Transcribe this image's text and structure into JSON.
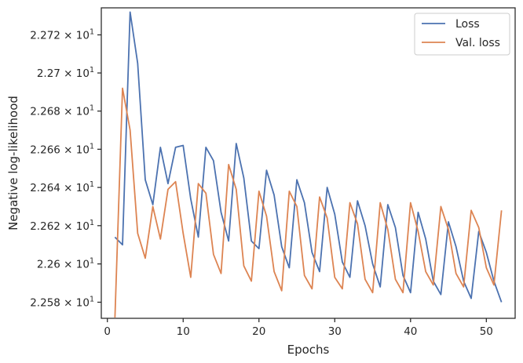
{
  "chart_data": {
    "type": "line",
    "xlabel": "Epochs",
    "ylabel": "Negative log-likelihood",
    "xlim": [
      -0.8,
      53.8
    ],
    "ylim": [
      22.5716,
      22.7342
    ],
    "y_scale": "log",
    "x_ticks": [
      0,
      10,
      20,
      30,
      40,
      50
    ],
    "y_ticks": [
      {
        "value": 22.58,
        "mantissa": "2.258",
        "base": "10",
        "exp": "1"
      },
      {
        "value": 22.6,
        "mantissa": "2.26",
        "base": "10",
        "exp": "1"
      },
      {
        "value": 22.62,
        "mantissa": "2.262",
        "base": "10",
        "exp": "1"
      },
      {
        "value": 22.64,
        "mantissa": "2.264",
        "base": "10",
        "exp": "1"
      },
      {
        "value": 22.66,
        "mantissa": "2.266",
        "base": "10",
        "exp": "1"
      },
      {
        "value": 22.68,
        "mantissa": "2.268",
        "base": "10",
        "exp": "1"
      },
      {
        "value": 22.7,
        "mantissa": "2.27",
        "base": "10",
        "exp": "1"
      },
      {
        "value": 22.72,
        "mantissa": "2.272",
        "base": "10",
        "exp": "1"
      }
    ],
    "grid": false,
    "legend_position": "top-right",
    "x": [
      1,
      2,
      3,
      4,
      5,
      6,
      7,
      8,
      9,
      10,
      11,
      12,
      13,
      14,
      15,
      16,
      17,
      18,
      19,
      20,
      21,
      22,
      23,
      24,
      25,
      26,
      27,
      28,
      29,
      30,
      31,
      32,
      33,
      34,
      35,
      36,
      37,
      38,
      39,
      40,
      41,
      42,
      43,
      44,
      45,
      46,
      47,
      48,
      49,
      50,
      51,
      52
    ],
    "series": [
      {
        "name": "Loss",
        "color": "#4c72b0",
        "values": [
          22.614,
          22.61,
          22.732,
          22.705,
          22.644,
          22.631,
          22.661,
          22.642,
          22.661,
          22.662,
          22.634,
          22.614,
          22.661,
          22.654,
          22.627,
          22.612,
          22.663,
          22.645,
          22.612,
          22.608,
          22.649,
          22.636,
          22.609,
          22.598,
          22.644,
          22.632,
          22.606,
          22.596,
          22.64,
          22.626,
          22.601,
          22.593,
          22.633,
          22.62,
          22.6,
          22.588,
          22.631,
          22.619,
          22.594,
          22.585,
          22.627,
          22.613,
          22.591,
          22.584,
          22.622,
          22.609,
          22.591,
          22.582,
          22.617,
          22.606,
          22.591,
          22.58
        ]
      },
      {
        "name": "Val. loss",
        "color": "#dd8452",
        "values": [
          22.572,
          22.692,
          22.67,
          22.616,
          22.603,
          22.63,
          22.613,
          22.639,
          22.643,
          22.616,
          22.593,
          22.642,
          22.637,
          22.605,
          22.595,
          22.652,
          22.639,
          22.599,
          22.591,
          22.638,
          22.625,
          22.596,
          22.586,
          22.638,
          22.63,
          22.594,
          22.587,
          22.635,
          22.624,
          22.593,
          22.587,
          22.632,
          22.621,
          22.592,
          22.585,
          22.632,
          22.618,
          22.592,
          22.585,
          22.632,
          22.617,
          22.596,
          22.589,
          22.63,
          22.618,
          22.595,
          22.588,
          22.628,
          22.619,
          22.598,
          22.589,
          22.628
        ]
      }
    ]
  }
}
